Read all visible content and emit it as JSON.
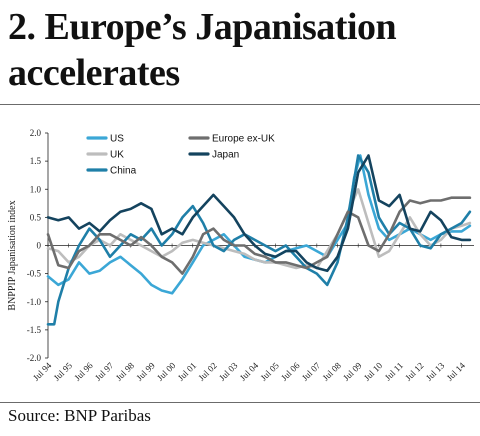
{
  "header": {
    "title": "2. Europe’s Japanisation accelerates"
  },
  "footer": {
    "source": "Source: BNP Paribas"
  },
  "chart_data": {
    "type": "line",
    "title": "2. Europe’s Japanisation accelerates",
    "xlabel": "",
    "ylabel": "BNPPIP Japanisation index",
    "ylim": [
      -2.0,
      2.0
    ],
    "yticks": [
      "2.0",
      "1.5",
      "1.0",
      "0.5",
      "0",
      "-0.5",
      "-1.0",
      "-1.5",
      "-2.0"
    ],
    "ytick_values": [
      2.0,
      1.5,
      1.0,
      0.5,
      0,
      -0.5,
      -1.0,
      -1.5,
      -2.0
    ],
    "xticks": [
      "Jul 94",
      "Jul 95",
      "Jul 96",
      "Jul 97",
      "Jul 98",
      "Jul 99",
      "Jul 00",
      "Jul 01",
      "Jul 02",
      "Jul 03",
      "Jul 04",
      "Jul 05",
      "Jul 06",
      "Jul 07",
      "Jul 08",
      "Jul 09",
      "Jul 10",
      "Jul 11",
      "Jul 12",
      "Jul 13",
      "Jul 14"
    ],
    "xtick_values": [
      1994.5,
      1995.5,
      1996.5,
      1997.5,
      1998.5,
      1999.5,
      2000.5,
      2001.5,
      2002.5,
      2003.5,
      2004.5,
      2005.5,
      2006.5,
      2007.5,
      2008.5,
      2009.5,
      2010.5,
      2011.5,
      2012.5,
      2013.5,
      2014.5
    ],
    "xlim": [
      1994.5,
      2015.1
    ],
    "grid": false,
    "legend_position": "top-left",
    "series": [
      {
        "name": "US",
        "color": "#3ba7d6",
        "x": [
          1994.5,
          1995.0,
          1995.5,
          1996.0,
          1996.5,
          1997.0,
          1997.5,
          1998.0,
          1998.5,
          1999.0,
          1999.5,
          2000.0,
          2000.5,
          2001.0,
          2001.5,
          2002.0,
          2002.5,
          2003.0,
          2003.5,
          2004.0,
          2004.5,
          2005.0,
          2005.5,
          2006.0,
          2006.5,
          2007.0,
          2007.5,
          2008.0,
          2008.5,
          2009.0,
          2009.3,
          2009.6,
          2010.0,
          2010.5,
          2011.0,
          2011.5,
          2012.0,
          2012.5,
          2013.0,
          2013.5,
          2014.0,
          2014.5,
          2014.9
        ],
        "y": [
          -0.55,
          -0.7,
          -0.6,
          -0.3,
          -0.5,
          -0.45,
          -0.3,
          -0.2,
          -0.35,
          -0.5,
          -0.7,
          -0.8,
          -0.85,
          -0.6,
          -0.3,
          0.0,
          0.1,
          0.2,
          0.0,
          -0.2,
          -0.25,
          -0.3,
          -0.2,
          -0.1,
          -0.05,
          0.0,
          -0.1,
          -0.2,
          0.1,
          0.4,
          1.2,
          1.6,
          0.9,
          0.3,
          0.1,
          0.2,
          0.3,
          0.2,
          0.1,
          0.2,
          0.25,
          0.25,
          0.35
        ]
      },
      {
        "name": "UK",
        "color": "#bdbdbd",
        "x": [
          1994.5,
          1995.0,
          1995.5,
          1996.0,
          1996.5,
          1997.0,
          1997.5,
          1998.0,
          1998.5,
          1999.0,
          1999.5,
          2000.0,
          2000.5,
          2001.0,
          2001.5,
          2002.0,
          2002.5,
          2003.0,
          2003.5,
          2004.0,
          2004.5,
          2005.0,
          2005.5,
          2006.0,
          2006.5,
          2007.0,
          2007.5,
          2008.0,
          2008.5,
          2009.0,
          2009.5,
          2010.0,
          2010.5,
          2011.0,
          2011.5,
          2012.0,
          2012.5,
          2013.0,
          2013.5,
          2014.0,
          2014.5,
          2014.9
        ],
        "y": [
          -0.05,
          -0.1,
          -0.3,
          -0.2,
          0.0,
          0.1,
          0.0,
          0.2,
          0.1,
          0.0,
          -0.1,
          -0.2,
          -0.1,
          0.05,
          0.1,
          0.05,
          0.0,
          -0.05,
          -0.1,
          -0.15,
          -0.25,
          -0.3,
          -0.3,
          -0.35,
          -0.4,
          -0.35,
          -0.4,
          -0.1,
          0.2,
          0.6,
          1.0,
          0.4,
          -0.2,
          -0.1,
          0.2,
          0.5,
          0.2,
          0.0,
          0.1,
          0.3,
          0.35,
          0.4
        ]
      },
      {
        "name": "China",
        "color": "#1f7fa8",
        "x": [
          1994.5,
          1994.8,
          1995.0,
          1995.5,
          1996.0,
          1996.5,
          1997.0,
          1997.5,
          1998.0,
          1998.5,
          1999.0,
          1999.5,
          2000.0,
          2000.5,
          2001.0,
          2001.5,
          2002.0,
          2002.5,
          2003.0,
          2003.5,
          2004.0,
          2004.5,
          2005.0,
          2005.5,
          2006.0,
          2006.5,
          2007.0,
          2007.5,
          2008.0,
          2008.5,
          2009.0,
          2009.5,
          2010.0,
          2010.5,
          2011.0,
          2011.5,
          2012.0,
          2012.5,
          2013.0,
          2013.5,
          2014.0,
          2014.5,
          2014.9
        ],
        "y": [
          -1.4,
          -1.4,
          -1.0,
          -0.4,
          0.0,
          0.3,
          0.1,
          -0.2,
          0.0,
          0.2,
          0.1,
          0.3,
          0.0,
          0.2,
          0.5,
          0.7,
          0.4,
          0.0,
          -0.1,
          0.1,
          0.2,
          0.1,
          0.0,
          -0.1,
          0.0,
          -0.2,
          -0.4,
          -0.5,
          -0.7,
          -0.3,
          0.5,
          1.6,
          1.3,
          0.5,
          0.2,
          0.4,
          0.3,
          0.0,
          -0.05,
          0.2,
          0.3,
          0.4,
          0.6
        ]
      },
      {
        "name": "Europe ex-UK",
        "color": "#6e6e6e",
        "x": [
          1994.5,
          1995.0,
          1995.5,
          1996.0,
          1996.5,
          1997.0,
          1997.5,
          1998.0,
          1998.5,
          1999.0,
          1999.5,
          2000.0,
          2000.5,
          2001.0,
          2001.5,
          2002.0,
          2002.5,
          2003.0,
          2003.5,
          2004.0,
          2004.5,
          2005.0,
          2005.5,
          2006.0,
          2006.5,
          2007.0,
          2007.5,
          2008.0,
          2008.5,
          2009.0,
          2009.5,
          2010.0,
          2010.5,
          2011.0,
          2011.5,
          2012.0,
          2012.5,
          2013.0,
          2013.5,
          2014.0,
          2014.5,
          2014.9
        ],
        "y": [
          0.2,
          -0.35,
          -0.4,
          -0.1,
          0.0,
          0.2,
          0.2,
          0.1,
          0.0,
          0.15,
          0.0,
          -0.2,
          -0.3,
          -0.5,
          -0.2,
          0.2,
          0.3,
          0.1,
          0.0,
          0.0,
          -0.15,
          -0.2,
          -0.3,
          -0.3,
          -0.35,
          -0.4,
          -0.3,
          -0.2,
          0.2,
          0.6,
          0.5,
          0.0,
          -0.1,
          0.2,
          0.6,
          0.8,
          0.75,
          0.8,
          0.8,
          0.85,
          0.85,
          0.85
        ]
      },
      {
        "name": "Japan",
        "color": "#14435e",
        "x": [
          1994.5,
          1995.0,
          1995.5,
          1996.0,
          1996.5,
          1997.0,
          1997.5,
          1998.0,
          1998.5,
          1999.0,
          1999.5,
          2000.0,
          2000.5,
          2001.0,
          2001.5,
          2002.0,
          2002.5,
          2003.0,
          2003.5,
          2004.0,
          2004.5,
          2005.0,
          2005.5,
          2006.0,
          2006.5,
          2007.0,
          2007.5,
          2008.0,
          2008.5,
          2009.0,
          2009.5,
          2010.0,
          2010.5,
          2011.0,
          2011.5,
          2012.0,
          2012.5,
          2013.0,
          2013.5,
          2014.0,
          2014.5,
          2014.9
        ],
        "y": [
          0.5,
          0.45,
          0.5,
          0.3,
          0.4,
          0.25,
          0.45,
          0.6,
          0.65,
          0.75,
          0.65,
          0.2,
          0.3,
          0.2,
          0.5,
          0.7,
          0.9,
          0.7,
          0.5,
          0.2,
          0.0,
          -0.15,
          -0.2,
          -0.1,
          -0.1,
          -0.3,
          -0.4,
          -0.45,
          -0.2,
          0.3,
          1.3,
          1.6,
          0.8,
          0.7,
          0.9,
          0.3,
          0.25,
          0.6,
          0.45,
          0.15,
          0.1,
          0.1
        ]
      }
    ]
  }
}
